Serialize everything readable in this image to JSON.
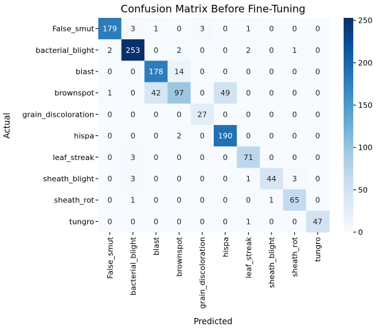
{
  "chart_data": {
    "type": "heatmap",
    "title": "Confusion Matrix Before Fine-Tuning",
    "xlabel": "Predicted",
    "ylabel": "Actual",
    "labels": [
      "False_smut",
      "bacterial_blight",
      "blast",
      "brownspot",
      "grain_discoloration",
      "hispa",
      "leaf_streak",
      "sheath_blight",
      "sheath_rot",
      "tungro"
    ],
    "matrix": [
      [
        179,
        3,
        1,
        0,
        3,
        0,
        1,
        0,
        0,
        0
      ],
      [
        2,
        253,
        0,
        2,
        0,
        0,
        2,
        0,
        1,
        0
      ],
      [
        0,
        0,
        178,
        14,
        0,
        0,
        0,
        0,
        0,
        0
      ],
      [
        1,
        0,
        42,
        97,
        0,
        49,
        0,
        0,
        0,
        0
      ],
      [
        0,
        0,
        0,
        0,
        27,
        0,
        0,
        0,
        0,
        0
      ],
      [
        0,
        0,
        0,
        2,
        0,
        190,
        0,
        0,
        0,
        0
      ],
      [
        0,
        3,
        0,
        0,
        0,
        0,
        71,
        0,
        0,
        0
      ],
      [
        0,
        3,
        0,
        0,
        0,
        0,
        1,
        44,
        3,
        0
      ],
      [
        0,
        1,
        0,
        0,
        0,
        0,
        0,
        1,
        65,
        0
      ],
      [
        0,
        0,
        0,
        0,
        0,
        0,
        1,
        0,
        0,
        47
      ]
    ],
    "colormap": "Blues",
    "vmin": 0,
    "vmax": 253,
    "colorbar_ticks": [
      0,
      50,
      100,
      150,
      200,
      250
    ]
  }
}
